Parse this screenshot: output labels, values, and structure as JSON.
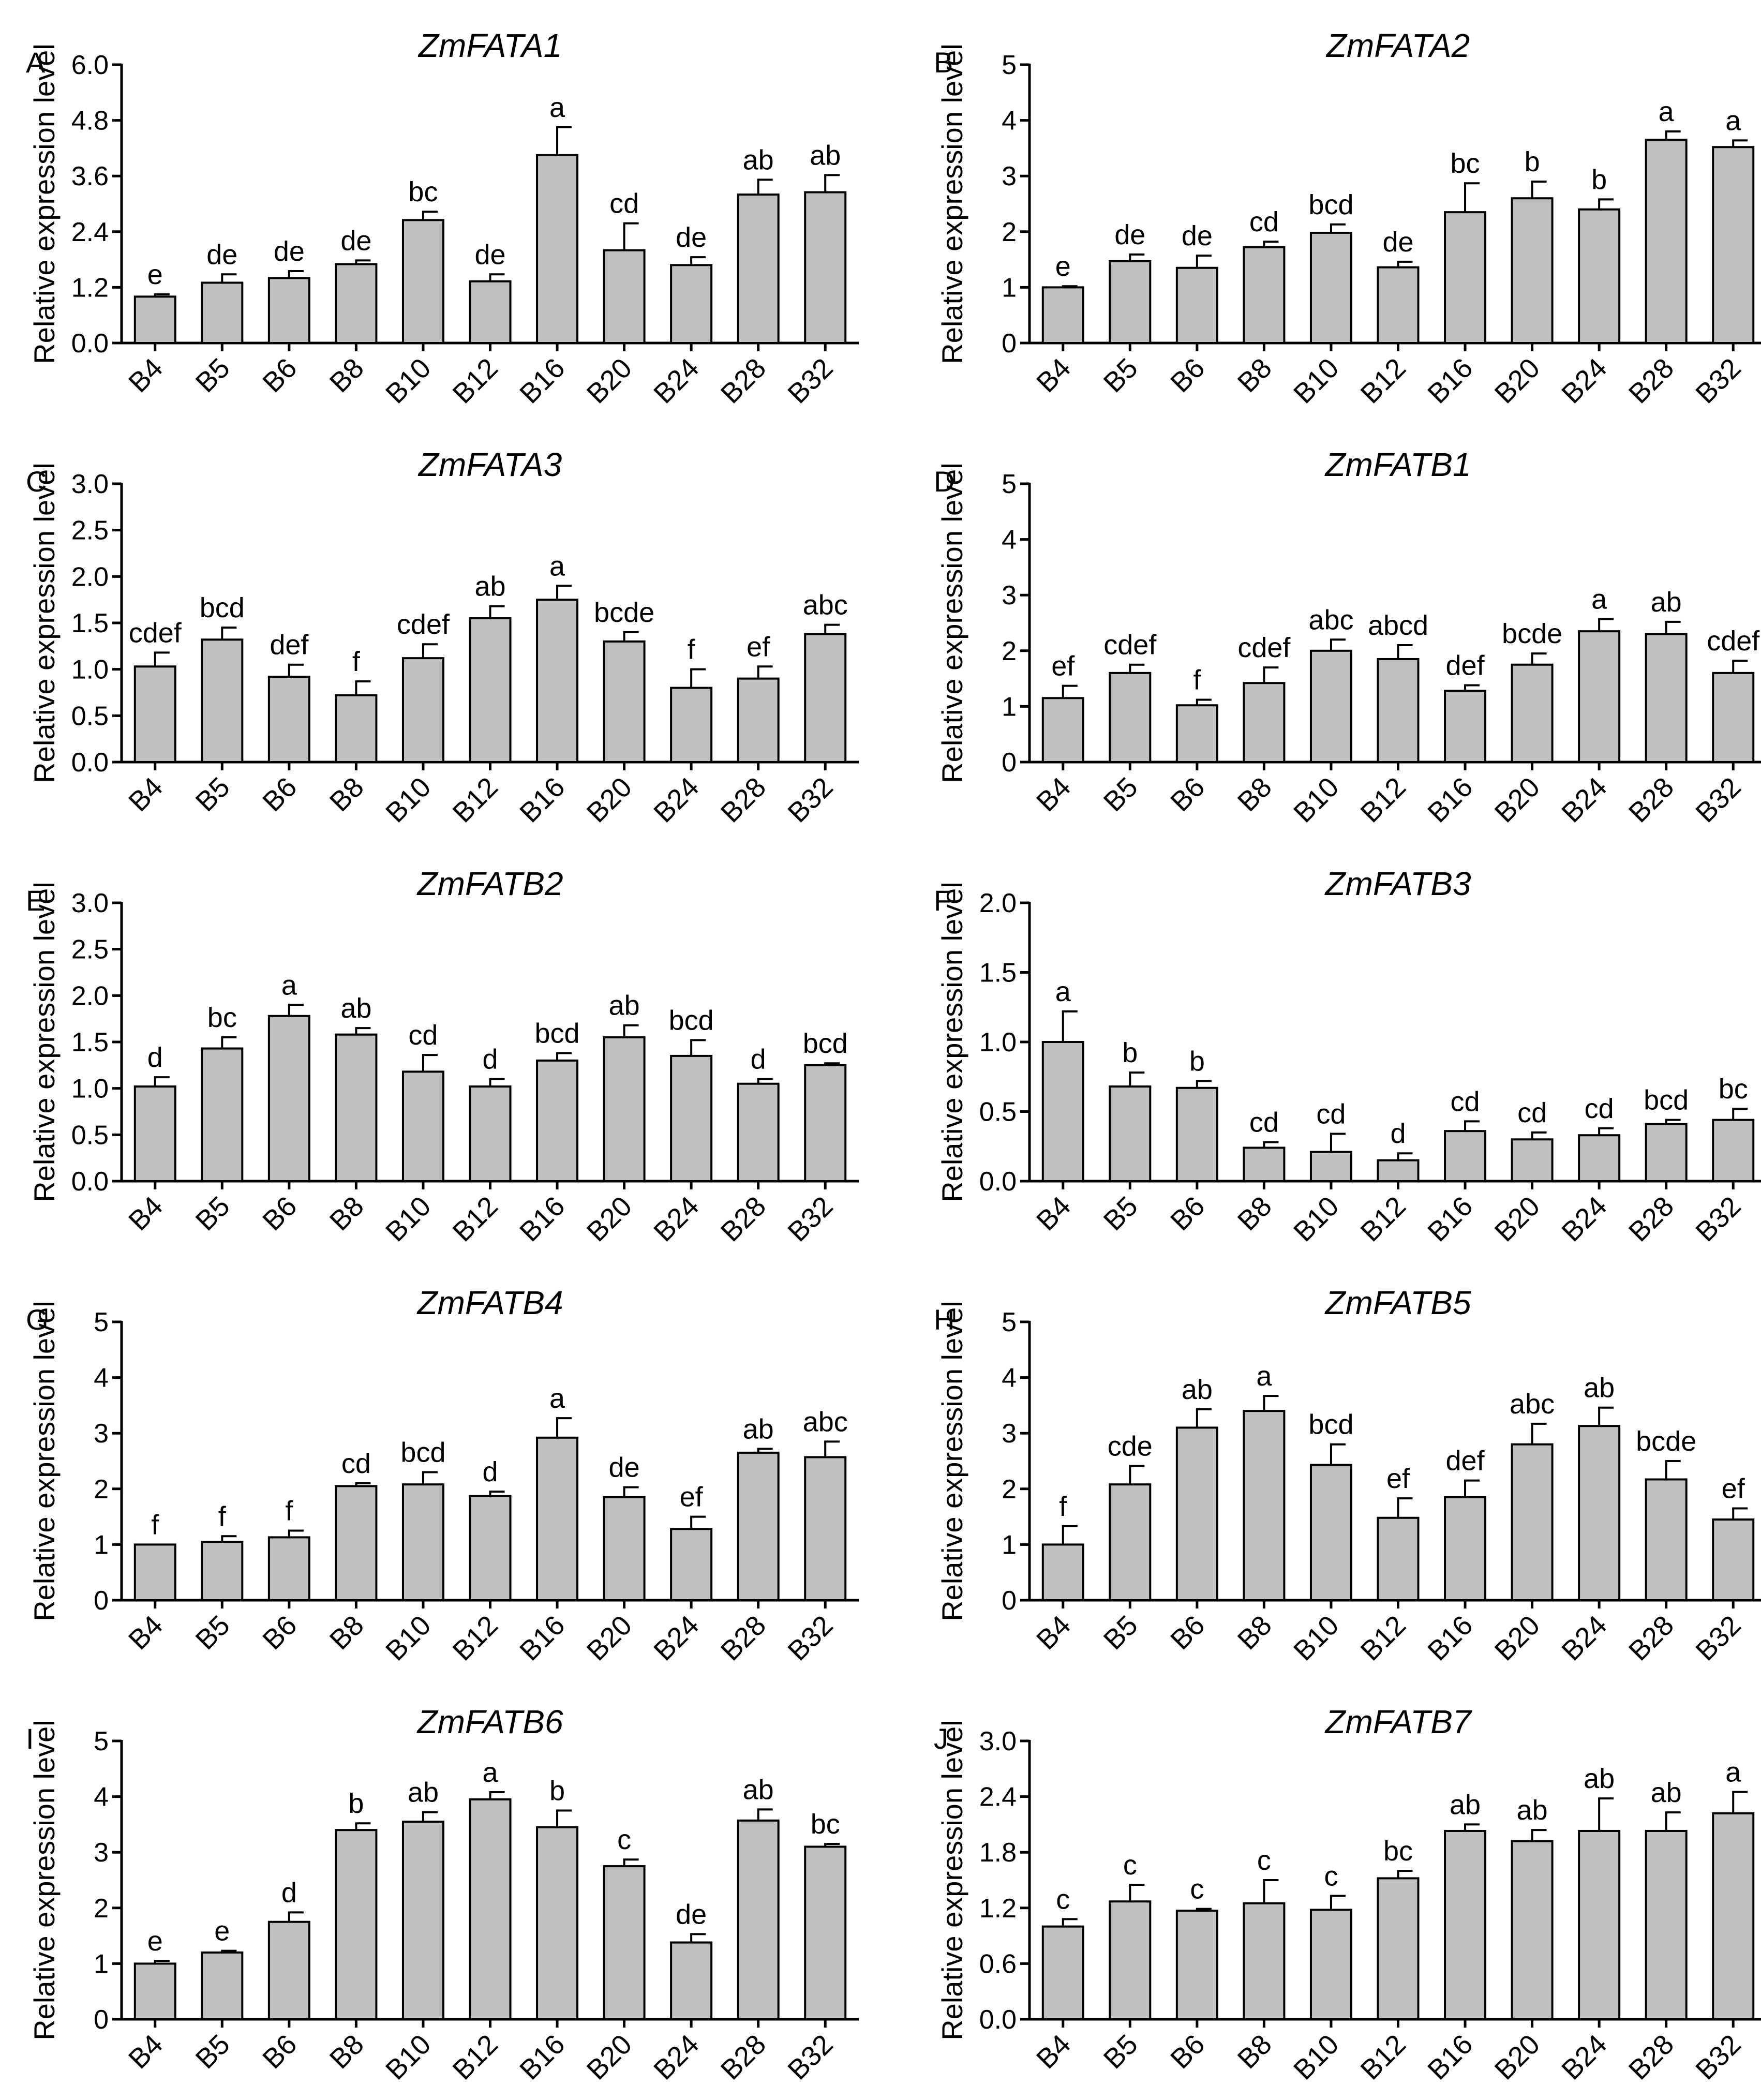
{
  "figure": {
    "ylabel": "Relative expression level",
    "bar_color": "#c0c0c0",
    "categories": [
      "B4",
      "B5",
      "B6",
      "B8",
      "B10",
      "B12",
      "B16",
      "B20",
      "B24",
      "B28",
      "B32"
    ]
  },
  "chart_data": [
    {
      "type": "bar",
      "panel": "A",
      "title": "ZmFATA1",
      "ylabel": "Relative expression level",
      "categories": [
        "B4",
        "B5",
        "B6",
        "B8",
        "B10",
        "B12",
        "B16",
        "B20",
        "B24",
        "B28",
        "B32"
      ],
      "ylim": [
        0,
        6.0
      ],
      "yticks": [
        "0.0",
        "1.2",
        "2.4",
        "3.6",
        "4.8",
        "6.0"
      ],
      "values": [
        1.0,
        1.3,
        1.4,
        1.7,
        2.65,
        1.33,
        4.05,
        2.0,
        1.68,
        3.2,
        3.25
      ],
      "errors": [
        0.05,
        0.18,
        0.15,
        0.08,
        0.18,
        0.15,
        0.6,
        0.58,
        0.17,
        0.32,
        0.37
      ],
      "letters": [
        "e",
        "de",
        "de",
        "de",
        "bc",
        "de",
        "a",
        "cd",
        "de",
        "ab",
        "ab"
      ]
    },
    {
      "type": "bar",
      "panel": "B",
      "title": "ZmFATA2",
      "ylabel": "Relative expression level",
      "categories": [
        "B4",
        "B5",
        "B6",
        "B8",
        "B10",
        "B12",
        "B16",
        "B20",
        "B24",
        "B28",
        "B32"
      ],
      "ylim": [
        0,
        5
      ],
      "yticks": [
        "0",
        "1",
        "2",
        "3",
        "4",
        "5"
      ],
      "values": [
        1.0,
        1.47,
        1.35,
        1.72,
        1.98,
        1.36,
        2.35,
        2.6,
        2.4,
        3.65,
        3.52
      ],
      "errors": [
        0.02,
        0.12,
        0.22,
        0.1,
        0.15,
        0.1,
        0.52,
        0.3,
        0.18,
        0.15,
        0.12
      ],
      "letters": [
        "e",
        "de",
        "de",
        "cd",
        "bcd",
        "de",
        "bc",
        "b",
        "b",
        "a",
        "a"
      ]
    },
    {
      "type": "bar",
      "panel": "C",
      "title": "ZmFATA3",
      "ylabel": "Relative expression level",
      "categories": [
        "B4",
        "B5",
        "B6",
        "B8",
        "B10",
        "B12",
        "B16",
        "B20",
        "B24",
        "B28",
        "B32"
      ],
      "ylim": [
        0,
        3.0
      ],
      "yticks": [
        "0.0",
        "0.5",
        "1.0",
        "1.5",
        "2.0",
        "2.5",
        "3.0"
      ],
      "values": [
        1.03,
        1.32,
        0.92,
        0.72,
        1.12,
        1.55,
        1.75,
        1.3,
        0.8,
        0.9,
        1.38
      ],
      "errors": [
        0.15,
        0.13,
        0.13,
        0.15,
        0.15,
        0.13,
        0.15,
        0.1,
        0.2,
        0.13,
        0.1
      ],
      "letters": [
        "cdef",
        "bcd",
        "def",
        "f",
        "cdef",
        "ab",
        "a",
        "bcde",
        "f",
        "ef",
        "abc"
      ]
    },
    {
      "type": "bar",
      "panel": "D",
      "title": "ZmFATB1",
      "ylabel": "Relative expression level",
      "categories": [
        "B4",
        "B5",
        "B6",
        "B8",
        "B10",
        "B12",
        "B16",
        "B20",
        "B24",
        "B28",
        "B32"
      ],
      "ylim": [
        0,
        5
      ],
      "yticks": [
        "0",
        "1",
        "2",
        "3",
        "4",
        "5"
      ],
      "values": [
        1.15,
        1.6,
        1.02,
        1.42,
        2.0,
        1.85,
        1.28,
        1.75,
        2.35,
        2.3,
        1.6
      ],
      "errors": [
        0.22,
        0.15,
        0.1,
        0.28,
        0.2,
        0.25,
        0.1,
        0.2,
        0.22,
        0.22,
        0.22
      ],
      "letters": [
        "ef",
        "cdef",
        "f",
        "cdef",
        "abc",
        "abcd",
        "def",
        "bcde",
        "a",
        "ab",
        "cdef"
      ]
    },
    {
      "type": "bar",
      "panel": "E",
      "title": "ZmFATB2",
      "ylabel": "Relative expression level",
      "categories": [
        "B4",
        "B5",
        "B6",
        "B8",
        "B10",
        "B12",
        "B16",
        "B20",
        "B24",
        "B28",
        "B32"
      ],
      "ylim": [
        0,
        3.0
      ],
      "yticks": [
        "0.0",
        "0.5",
        "1.0",
        "1.5",
        "2.0",
        "2.5",
        "3.0"
      ],
      "values": [
        1.02,
        1.43,
        1.78,
        1.58,
        1.18,
        1.02,
        1.3,
        1.55,
        1.35,
        1.05,
        1.25
      ],
      "errors": [
        0.1,
        0.12,
        0.12,
        0.07,
        0.18,
        0.08,
        0.08,
        0.13,
        0.17,
        0.05,
        0.02
      ],
      "letters": [
        "d",
        "bc",
        "a",
        "ab",
        "cd",
        "d",
        "bcd",
        "ab",
        "bcd",
        "d",
        "bcd"
      ]
    },
    {
      "type": "bar",
      "panel": "F",
      "title": "ZmFATB3",
      "ylabel": "Relative expression level",
      "categories": [
        "B4",
        "B5",
        "B6",
        "B8",
        "B10",
        "B12",
        "B16",
        "B20",
        "B24",
        "B28",
        "B32"
      ],
      "ylim": [
        0,
        2.0
      ],
      "yticks": [
        "0.0",
        "0.5",
        "1.0",
        "1.5",
        "2.0"
      ],
      "values": [
        1.0,
        0.68,
        0.67,
        0.24,
        0.21,
        0.15,
        0.36,
        0.3,
        0.33,
        0.41,
        0.44
      ],
      "errors": [
        0.22,
        0.1,
        0.05,
        0.04,
        0.13,
        0.05,
        0.07,
        0.05,
        0.05,
        0.03,
        0.08
      ],
      "letters": [
        "a",
        "b",
        "b",
        "cd",
        "cd",
        "d",
        "cd",
        "cd",
        "cd",
        "bcd",
        "bc"
      ]
    },
    {
      "type": "bar",
      "panel": "G",
      "title": "ZmFATB4",
      "ylabel": "Relative expression level",
      "categories": [
        "B4",
        "B5",
        "B6",
        "B8",
        "B10",
        "B12",
        "B16",
        "B20",
        "B24",
        "B28",
        "B32"
      ],
      "ylim": [
        0,
        5
      ],
      "yticks": [
        "0",
        "1",
        "2",
        "3",
        "4",
        "5"
      ],
      "values": [
        1.0,
        1.05,
        1.13,
        2.05,
        2.08,
        1.87,
        2.92,
        1.85,
        1.28,
        2.65,
        2.57
      ],
      "errors": [
        0.0,
        0.1,
        0.12,
        0.05,
        0.22,
        0.08,
        0.35,
        0.18,
        0.22,
        0.07,
        0.28
      ],
      "letters": [
        "f",
        "f",
        "f",
        "cd",
        "bcd",
        "d",
        "a",
        "de",
        "ef",
        "ab",
        "abc"
      ]
    },
    {
      "type": "bar",
      "panel": "H",
      "title": "ZmFATB5",
      "ylabel": "Relative expression level",
      "categories": [
        "B4",
        "B5",
        "B6",
        "B8",
        "B10",
        "B12",
        "B16",
        "B20",
        "B24",
        "B28",
        "B32"
      ],
      "ylim": [
        0,
        5
      ],
      "yticks": [
        "0",
        "1",
        "2",
        "3",
        "4",
        "5"
      ],
      "values": [
        1.0,
        2.08,
        3.1,
        3.4,
        2.43,
        1.48,
        1.85,
        2.8,
        3.13,
        2.17,
        1.45
      ],
      "errors": [
        0.33,
        0.33,
        0.33,
        0.27,
        0.37,
        0.35,
        0.3,
        0.37,
        0.33,
        0.33,
        0.2
      ],
      "letters": [
        "f",
        "cde",
        "ab",
        "a",
        "bcd",
        "ef",
        "def",
        "abc",
        "ab",
        "bcde",
        "ef"
      ]
    },
    {
      "type": "bar",
      "panel": "I",
      "title": "ZmFATB6",
      "ylabel": "Relative expression level",
      "categories": [
        "B4",
        "B5",
        "B6",
        "B8",
        "B10",
        "B12",
        "B16",
        "B20",
        "B24",
        "B28",
        "B32"
      ],
      "ylim": [
        0,
        5
      ],
      "yticks": [
        "0",
        "1",
        "2",
        "3",
        "4",
        "5"
      ],
      "values": [
        1.0,
        1.2,
        1.75,
        3.4,
        3.55,
        3.95,
        3.45,
        2.75,
        1.38,
        3.57,
        3.1
      ],
      "errors": [
        0.05,
        0.03,
        0.17,
        0.12,
        0.17,
        0.13,
        0.3,
        0.12,
        0.15,
        0.2,
        0.05
      ],
      "letters": [
        "e",
        "e",
        "d",
        "b",
        "ab",
        "a",
        "b",
        "c",
        "de",
        "ab",
        "bc"
      ]
    },
    {
      "type": "bar",
      "panel": "J",
      "title": "ZmFATB7",
      "ylabel": "Relative expression level",
      "categories": [
        "B4",
        "B5",
        "B6",
        "B8",
        "B10",
        "B12",
        "B16",
        "B20",
        "B24",
        "B28",
        "B32"
      ],
      "ylim": [
        0,
        3.0
      ],
      "yticks": [
        "0.0",
        "0.6",
        "1.2",
        "1.8",
        "2.4",
        "3.0"
      ],
      "values": [
        1.0,
        1.27,
        1.17,
        1.25,
        1.18,
        1.52,
        2.03,
        1.92,
        2.03,
        2.03,
        2.22
      ],
      "errors": [
        0.08,
        0.18,
        0.02,
        0.25,
        0.15,
        0.08,
        0.07,
        0.12,
        0.35,
        0.2,
        0.23
      ],
      "letters": [
        "c",
        "c",
        "c",
        "c",
        "c",
        "bc",
        "ab",
        "ab",
        "ab",
        "ab",
        "a"
      ]
    }
  ]
}
